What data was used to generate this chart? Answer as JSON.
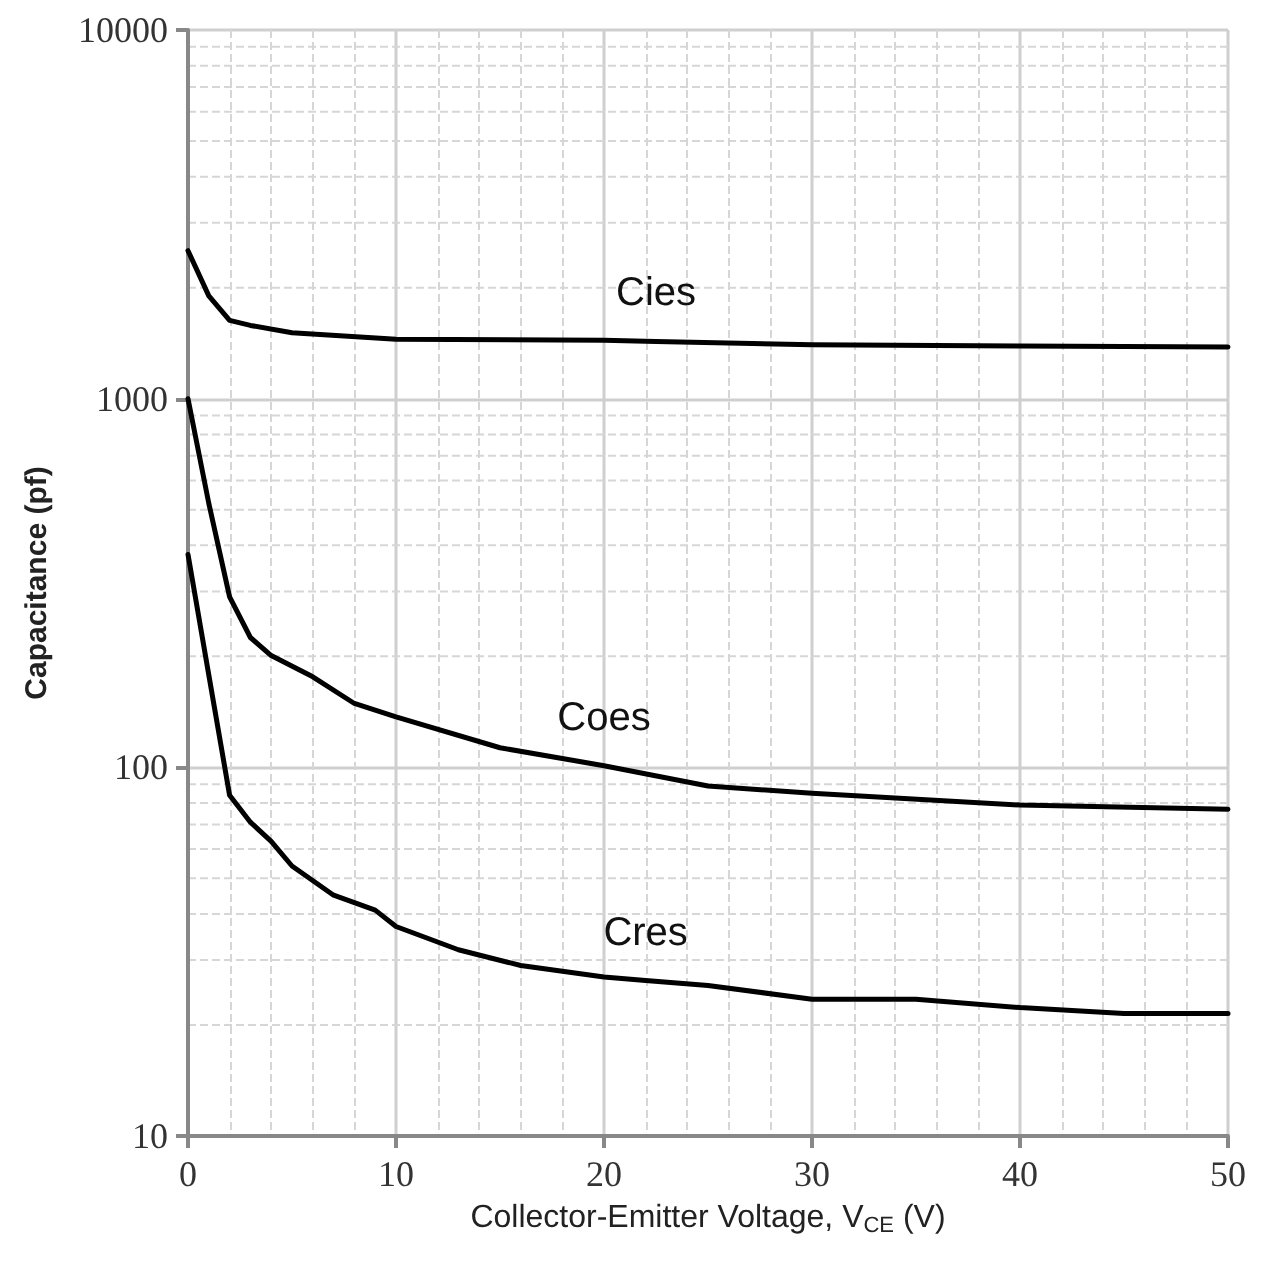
{
  "chart_data": {
    "type": "line",
    "xlabel": "Collector-Emitter Voltage, V$_{CE}$ (V)",
    "ylabel": "Capacitance (pf)",
    "xlim": [
      0,
      50
    ],
    "xticks": [
      0,
      10,
      20,
      30,
      40,
      50
    ],
    "ylim": [
      10,
      10000
    ],
    "yticks": [
      10,
      100,
      1000,
      10000
    ],
    "log": "y",
    "grid": true,
    "marker": "none",
    "line_style": "solid",
    "series": [
      {
        "name": "Cies",
        "color": "#000000",
        "x": [
          0,
          1,
          2,
          3,
          5,
          10,
          20,
          22.5,
          30,
          40,
          50
        ],
        "values": [
          2520,
          1900,
          1630,
          1580,
          1510,
          1450,
          1440,
          1430,
          1400,
          1390,
          1380
        ]
      },
      {
        "name": "Coes",
        "color": "#000000",
        "x": [
          0,
          1,
          2,
          3,
          4,
          6,
          8,
          10,
          15,
          20,
          25,
          30,
          40,
          50
        ],
        "values": [
          1000,
          520,
          290,
          225,
          201,
          176,
          149,
          137,
          113,
          101,
          89,
          85,
          79,
          77
        ]
      },
      {
        "name": "Cres",
        "color": "#000000",
        "x": [
          0,
          1,
          2,
          3,
          4,
          5,
          7,
          9,
          10,
          13,
          16,
          20,
          22,
          25,
          30,
          35,
          40,
          45,
          50
        ],
        "values": [
          378,
          178,
          84,
          71,
          63,
          54,
          45,
          41,
          37,
          32,
          29,
          27,
          26.4,
          25.6,
          23.5,
          23.5,
          22.3,
          21.5,
          21.5
        ]
      }
    ]
  }
}
